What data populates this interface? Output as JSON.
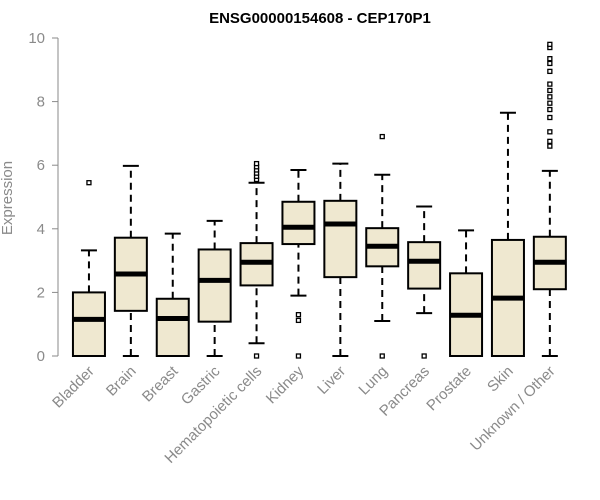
{
  "chart_data": {
    "type": "box",
    "title": "ENSG00000154608 - CEP170P1",
    "ylabel": "Expression",
    "xlabel": "",
    "ylim": [
      0,
      10
    ],
    "yticks": [
      0,
      2,
      4,
      6,
      8,
      10
    ],
    "grid": false,
    "box_color": "#efe8d0",
    "categories": [
      "Bladder",
      "Brain",
      "Breast",
      "Gastric",
      "Hematopoietic cells",
      "Kidney",
      "Liver",
      "Lung",
      "Pancreas",
      "Prostate",
      "Skin",
      "Unknown / Other"
    ],
    "boxes": [
      {
        "min": 0,
        "q1": 0,
        "median": 1.15,
        "q3": 2.0,
        "max": 3.32,
        "outliers": [
          5.45
        ]
      },
      {
        "min": 0,
        "q1": 1.42,
        "median": 2.58,
        "q3": 3.72,
        "max": 5.98,
        "outliers": []
      },
      {
        "min": 0,
        "q1": 0,
        "median": 1.18,
        "q3": 1.8,
        "max": 3.85,
        "outliers": []
      },
      {
        "min": 0,
        "q1": 1.08,
        "median": 2.38,
        "q3": 3.35,
        "max": 4.25,
        "outliers": []
      },
      {
        "min": 0.4,
        "q1": 2.22,
        "median": 2.95,
        "q3": 3.55,
        "max": 5.45,
        "outliers": [
          0,
          5.55,
          5.65,
          5.75,
          5.85,
          5.95,
          6.05
        ]
      },
      {
        "min": 1.9,
        "q1": 3.52,
        "median": 4.05,
        "q3": 4.85,
        "max": 5.85,
        "outliers": [
          0,
          1.12,
          1.3
        ]
      },
      {
        "min": 0,
        "q1": 2.48,
        "median": 4.15,
        "q3": 4.88,
        "max": 6.05,
        "outliers": []
      },
      {
        "min": 1.1,
        "q1": 2.82,
        "median": 3.45,
        "q3": 4.02,
        "max": 5.7,
        "outliers": [
          0,
          6.9
        ]
      },
      {
        "min": 1.35,
        "q1": 2.12,
        "median": 2.98,
        "q3": 3.58,
        "max": 4.7,
        "outliers": [
          0
        ]
      },
      {
        "min": 0,
        "q1": 0,
        "median": 1.28,
        "q3": 2.6,
        "max": 3.95,
        "outliers": []
      },
      {
        "min": 0,
        "q1": 0,
        "median": 1.82,
        "q3": 3.65,
        "max": 7.65,
        "outliers": []
      },
      {
        "min": 0,
        "q1": 2.1,
        "median": 2.95,
        "q3": 3.75,
        "max": 5.82,
        "outliers": [
          6.6,
          6.75,
          7.05,
          7.5,
          7.75,
          7.95,
          8.15,
          8.35,
          8.55,
          8.95,
          9.2,
          9.35,
          9.7,
          9.8
        ]
      }
    ]
  }
}
